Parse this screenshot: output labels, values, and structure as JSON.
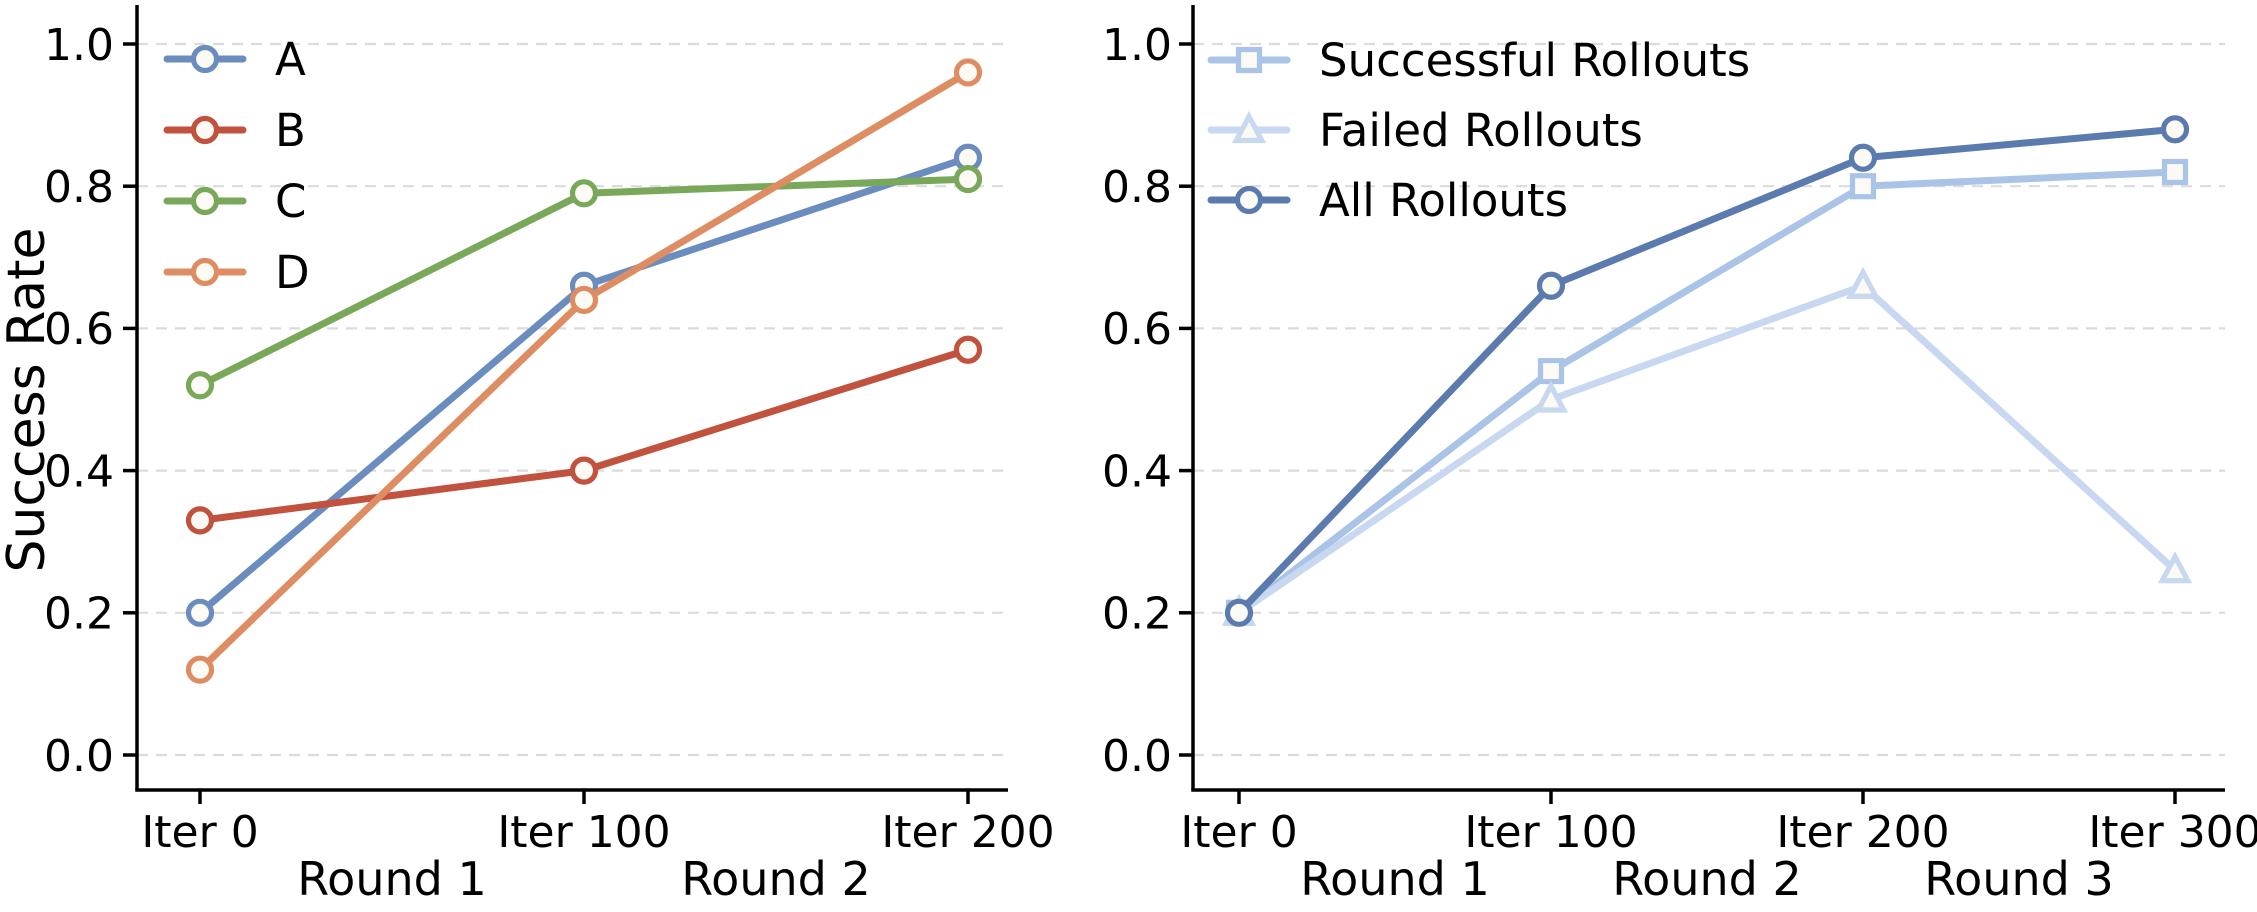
{
  "figure": {
    "background": "#ffffff",
    "text_color": "#000000",
    "gridline_color": "#dbdbdb",
    "spine_color": "#000000",
    "marker_fill": "#fbfaf5"
  },
  "chart_data": [
    {
      "type": "line",
      "title": "",
      "xlabel": "",
      "ylabel": "Success Rate",
      "categories": [
        "Iter 0",
        "Iter 100",
        "Iter 200"
      ],
      "round_labels": [
        "Round 1",
        "Round 2"
      ],
      "ylim": [
        0.0,
        1.0
      ],
      "yticks": [
        0.0,
        0.2,
        0.4,
        0.6,
        0.8,
        1.0
      ],
      "ytick_labels": [
        "0.0",
        "0.2",
        "0.4",
        "0.6",
        "0.8",
        "1.0"
      ],
      "grid": "horizontal-dashed",
      "legend_position": "upper left",
      "series": [
        {
          "name": "A",
          "color": "#6A8CBF",
          "marker": "circle",
          "values": [
            0.2,
            0.66,
            0.84
          ]
        },
        {
          "name": "B",
          "color": "#C0523E",
          "marker": "circle",
          "values": [
            0.33,
            0.4,
            0.57
          ]
        },
        {
          "name": "C",
          "color": "#7AA85A",
          "marker": "circle",
          "values": [
            0.52,
            0.79,
            0.81
          ]
        },
        {
          "name": "D",
          "color": "#DE8D63",
          "marker": "circle",
          "values": [
            0.12,
            0.64,
            0.96
          ]
        }
      ]
    },
    {
      "type": "line",
      "title": "",
      "xlabel": "",
      "ylabel": "",
      "categories": [
        "Iter 0",
        "Iter 100",
        "Iter 200",
        "Iter 300"
      ],
      "round_labels": [
        "Round 1",
        "Round 2",
        "Round 3"
      ],
      "ylim": [
        0.0,
        1.0
      ],
      "yticks": [
        0.0,
        0.2,
        0.4,
        0.6,
        0.8,
        1.0
      ],
      "ytick_labels": [
        "0.0",
        "0.2",
        "0.4",
        "0.6",
        "0.8",
        "1.0"
      ],
      "grid": "horizontal-dashed",
      "legend_position": "upper left",
      "series": [
        {
          "name": "Successful Rollouts",
          "color": "#A9C4E6",
          "marker": "square",
          "values": [
            0.2,
            0.54,
            0.8,
            0.82
          ]
        },
        {
          "name": "Failed Rollouts",
          "color": "#C8D8F0",
          "marker": "triangle-up",
          "values": [
            0.2,
            0.5,
            0.66,
            0.26
          ]
        },
        {
          "name": "All Rollouts",
          "color": "#5B7AAE",
          "marker": "circle",
          "values": [
            0.2,
            0.66,
            0.84,
            0.88
          ]
        }
      ]
    }
  ]
}
